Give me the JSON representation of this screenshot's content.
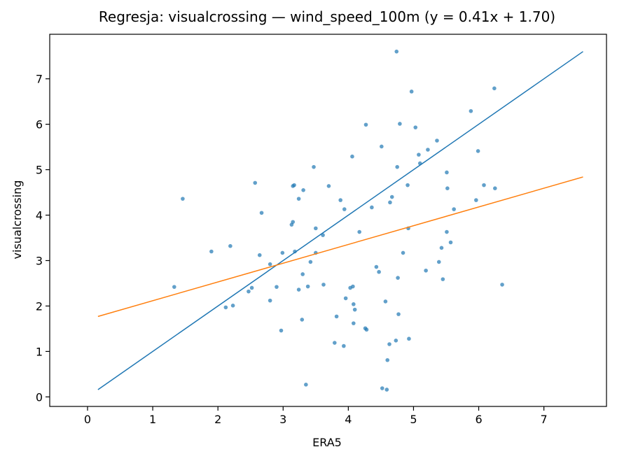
{
  "chart_data": {
    "type": "scatter",
    "title": "Regresja: visualcrossing — wind_speed_100m (y = 0.41x + 1.70)",
    "xlabel": "ERA5",
    "ylabel": "visualcrossing",
    "xlim": [
      -0.58,
      7.96
    ],
    "ylim": [
      -0.21,
      7.98
    ],
    "xticks": [
      0,
      1,
      2,
      3,
      4,
      5,
      6,
      7
    ],
    "yticks": [
      0,
      1,
      2,
      3,
      4,
      5,
      6,
      7
    ],
    "grid": false,
    "legend": "none",
    "colors": {
      "points": "#1f77b4",
      "identity_line": "#1f77b4",
      "regression_line": "#ff7f0e"
    },
    "series": [
      {
        "type": "scatter",
        "points": [
          [
            1.33,
            2.42
          ],
          [
            1.46,
            4.36
          ],
          [
            1.9,
            3.2
          ],
          [
            2.12,
            1.97
          ],
          [
            2.19,
            3.32
          ],
          [
            2.23,
            2.01
          ],
          [
            2.47,
            2.32
          ],
          [
            2.52,
            2.4
          ],
          [
            2.57,
            4.71
          ],
          [
            2.64,
            3.12
          ],
          [
            2.67,
            4.05
          ],
          [
            2.8,
            2.12
          ],
          [
            2.8,
            2.92
          ],
          [
            2.9,
            2.42
          ],
          [
            2.97,
            1.46
          ],
          [
            2.99,
            3.17
          ],
          [
            3.13,
            3.79
          ],
          [
            3.15,
            3.85
          ],
          [
            3.15,
            4.64
          ],
          [
            3.17,
            4.66
          ],
          [
            3.18,
            3.2
          ],
          [
            3.24,
            4.36
          ],
          [
            3.24,
            2.36
          ],
          [
            3.29,
            1.7
          ],
          [
            3.3,
            2.7
          ],
          [
            3.31,
            4.55
          ],
          [
            3.35,
            0.27
          ],
          [
            3.38,
            2.43
          ],
          [
            3.42,
            2.97
          ],
          [
            3.47,
            5.06
          ],
          [
            3.5,
            3.71
          ],
          [
            3.5,
            3.17
          ],
          [
            3.61,
            3.56
          ],
          [
            3.62,
            2.47
          ],
          [
            3.7,
            4.64
          ],
          [
            3.79,
            1.19
          ],
          [
            3.82,
            1.77
          ],
          [
            3.88,
            4.33
          ],
          [
            3.93,
            1.12
          ],
          [
            3.94,
            4.13
          ],
          [
            3.96,
            2.17
          ],
          [
            4.03,
            2.4
          ],
          [
            4.06,
            5.29
          ],
          [
            4.07,
            2.43
          ],
          [
            4.08,
            2.04
          ],
          [
            4.08,
            1.62
          ],
          [
            4.1,
            1.92
          ],
          [
            4.17,
            3.63
          ],
          [
            4.26,
            1.51
          ],
          [
            4.27,
            5.99
          ],
          [
            4.28,
            1.48
          ],
          [
            4.36,
            4.17
          ],
          [
            4.43,
            2.86
          ],
          [
            4.47,
            2.75
          ],
          [
            4.51,
            5.51
          ],
          [
            4.52,
            0.19
          ],
          [
            4.57,
            2.1
          ],
          [
            4.59,
            0.16
          ],
          [
            4.6,
            0.81
          ],
          [
            4.63,
            1.16
          ],
          [
            4.64,
            4.28
          ],
          [
            4.67,
            4.4
          ],
          [
            4.73,
            1.24
          ],
          [
            4.74,
            7.6
          ],
          [
            4.75,
            5.06
          ],
          [
            4.76,
            2.62
          ],
          [
            4.77,
            1.82
          ],
          [
            4.79,
            6.01
          ],
          [
            4.84,
            3.17
          ],
          [
            4.91,
            4.66
          ],
          [
            4.92,
            3.71
          ],
          [
            4.93,
            1.28
          ],
          [
            4.97,
            6.72
          ],
          [
            5.03,
            5.93
          ],
          [
            5.08,
            5.33
          ],
          [
            5.1,
            5.14
          ],
          [
            5.19,
            2.78
          ],
          [
            5.22,
            5.44
          ],
          [
            5.36,
            5.64
          ],
          [
            5.39,
            2.97
          ],
          [
            5.43,
            3.28
          ],
          [
            5.45,
            2.59
          ],
          [
            5.51,
            4.94
          ],
          [
            5.51,
            3.63
          ],
          [
            5.52,
            4.59
          ],
          [
            5.57,
            3.4
          ],
          [
            5.62,
            4.13
          ],
          [
            5.88,
            6.29
          ],
          [
            5.96,
            4.33
          ],
          [
            5.99,
            5.41
          ],
          [
            6.08,
            4.66
          ],
          [
            6.24,
            6.79
          ],
          [
            6.25,
            4.59
          ],
          [
            6.36,
            2.47
          ]
        ]
      },
      {
        "type": "line",
        "role": "identity",
        "x": [
          0.16,
          7.6
        ],
        "y": [
          0.16,
          7.6
        ]
      },
      {
        "type": "line",
        "role": "regression",
        "x": [
          0.16,
          7.6
        ],
        "y": [
          1.77,
          4.84
        ]
      }
    ]
  }
}
